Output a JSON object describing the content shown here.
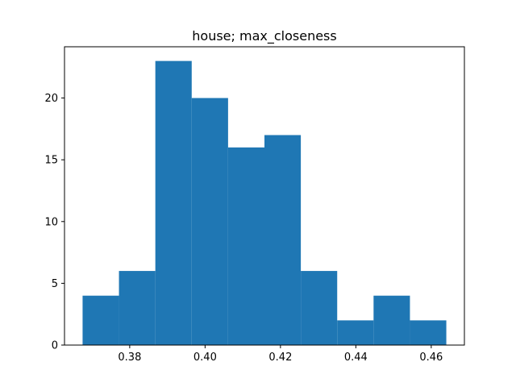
{
  "chart_data": {
    "type": "bar",
    "subtype": "histogram",
    "title": "house; max_closeness",
    "xlabel": "",
    "ylabel": "",
    "bin_edges": [
      0.3675,
      0.37715,
      0.3868,
      0.39645,
      0.4061,
      0.41575,
      0.4254,
      0.43505,
      0.4447,
      0.45435,
      0.464
    ],
    "values": [
      4,
      6,
      23,
      20,
      16,
      17,
      6,
      2,
      4,
      2
    ],
    "xlim": [
      0.3627,
      0.4688
    ],
    "ylim": [
      0,
      24.15
    ],
    "xticks": [
      0.38,
      0.4,
      0.42,
      0.44,
      0.46
    ],
    "xtick_labels": [
      "0.38",
      "0.40",
      "0.42",
      "0.44",
      "0.46"
    ],
    "yticks": [
      0,
      5,
      10,
      15,
      20
    ],
    "ytick_labels": [
      "0",
      "5",
      "10",
      "15",
      "20"
    ],
    "grid": false,
    "legend": "none",
    "bar_color": "#1f77b4"
  }
}
